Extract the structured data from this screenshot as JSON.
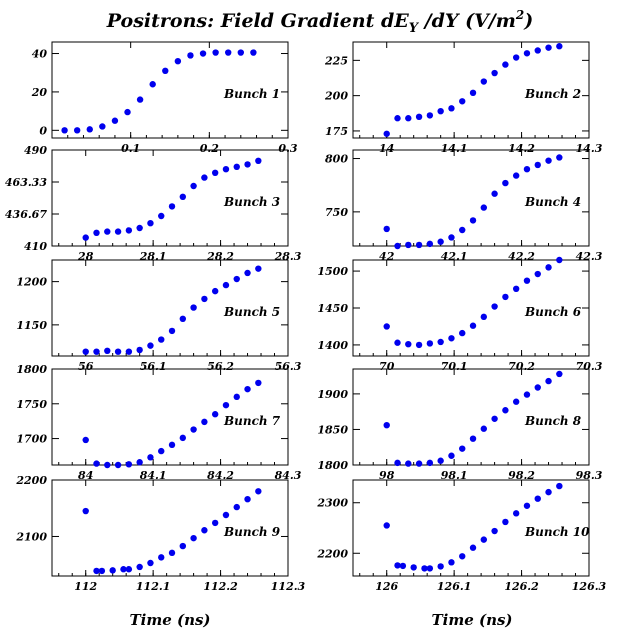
{
  "title": {
    "main": "Positrons: Field Gradient dE",
    "sub_y": "Y",
    "rest": " /dY (V/m",
    "sup_2": "2",
    "close": ")"
  },
  "xlabel_left": "Time (ns)",
  "xlabel_right": "Time (ns)",
  "colors": {
    "marker": "#0000ee",
    "axis": "#000000"
  },
  "chart_data": [
    {
      "type": "scatter",
      "panel_label": "Bunch 1",
      "xlim": [
        0,
        0.3
      ],
      "ylim": [
        -4,
        46
      ],
      "xticks": [
        "0.1",
        "0.2",
        "0.3"
      ],
      "xtick_values": [
        0.1,
        0.2,
        0.3
      ],
      "yticks": [
        "0",
        "20",
        "40"
      ],
      "ytick_values": [
        0,
        20,
        40
      ],
      "x": [
        0.016,
        0.032,
        0.048,
        0.064,
        0.08,
        0.096,
        0.112,
        0.128,
        0.144,
        0.16,
        0.176,
        0.192,
        0.208,
        0.224,
        0.24,
        0.256
      ],
      "y": [
        0,
        0,
        0.5,
        2,
        5,
        9.5,
        16,
        24,
        31,
        36,
        39,
        40,
        40.5,
        40.5,
        40.5,
        40.5
      ]
    },
    {
      "type": "scatter",
      "panel_label": "Bunch 2",
      "xlim": [
        13.95,
        14.3
      ],
      "ylim": [
        170,
        238
      ],
      "xticks": [
        "14",
        "14.1",
        "14.2",
        "14.3"
      ],
      "xtick_values": [
        14,
        14.1,
        14.2,
        14.3
      ],
      "yticks": [
        "175",
        "200",
        "225"
      ],
      "ytick_values": [
        175,
        200,
        225
      ],
      "x": [
        14,
        14.016,
        14.032,
        14.048,
        14.064,
        14.08,
        14.096,
        14.112,
        14.128,
        14.144,
        14.16,
        14.176,
        14.192,
        14.208,
        14.224,
        14.24,
        14.256
      ],
      "y": [
        173,
        184,
        184,
        185,
        186,
        189,
        191,
        196,
        202,
        210,
        216,
        222,
        227,
        230,
        232,
        234,
        235
      ]
    },
    {
      "type": "scatter",
      "panel_label": "Bunch 3",
      "xlim": [
        27.95,
        28.3
      ],
      "ylim": [
        410,
        490
      ],
      "xticks": [
        "28",
        "28.1",
        "28.2",
        "28.3"
      ],
      "xtick_values": [
        28,
        28.1,
        28.2,
        28.3
      ],
      "yticks": [
        "410",
        "436.67",
        "463.33",
        "490"
      ],
      "ytick_values": [
        410,
        436.67,
        463.33,
        490
      ],
      "x": [
        28,
        28.016,
        28.032,
        28.048,
        28.064,
        28.08,
        28.096,
        28.112,
        28.128,
        28.144,
        28.16,
        28.176,
        28.192,
        28.208,
        28.224,
        28.24,
        28.256
      ],
      "y": [
        417,
        421,
        422,
        422,
        423,
        425,
        429,
        435,
        443,
        451,
        460,
        467,
        471,
        474,
        476,
        478,
        481
      ]
    },
    {
      "type": "scatter",
      "panel_label": "Bunch 4",
      "xlim": [
        41.95,
        42.3
      ],
      "ylim": [
        718,
        808
      ],
      "xticks": [
        "42",
        "42.1",
        "42.2",
        "42.3"
      ],
      "xtick_values": [
        42,
        42.1,
        42.2,
        42.3
      ],
      "yticks": [
        "750",
        "800"
      ],
      "ytick_values": [
        750,
        800
      ],
      "x": [
        42,
        42.016,
        42.032,
        42.048,
        42.064,
        42.08,
        42.096,
        42.112,
        42.128,
        42.144,
        42.16,
        42.176,
        42.192,
        42.208,
        42.224,
        42.24,
        42.256
      ],
      "y": [
        734,
        718,
        719,
        719,
        720,
        722,
        726,
        733,
        742,
        754,
        767,
        777,
        784,
        790,
        794,
        798,
        801
      ]
    },
    {
      "type": "scatter",
      "panel_label": "Bunch 5",
      "xlim": [
        55.95,
        56.3
      ],
      "ylim": [
        1114,
        1225
      ],
      "xticks": [
        "56",
        "56.1",
        "56.2",
        "56.3"
      ],
      "xtick_values": [
        56,
        56.1,
        56.2,
        56.3
      ],
      "yticks": [
        "1150",
        "1200"
      ],
      "ytick_values": [
        1150,
        1200
      ],
      "x": [
        56,
        56.016,
        56.032,
        56.048,
        56.064,
        56.08,
        56.096,
        56.112,
        56.128,
        56.144,
        56.16,
        56.176,
        56.192,
        56.208,
        56.224,
        56.24,
        56.256
      ],
      "y": [
        1119,
        1119,
        1120,
        1119,
        1119,
        1121,
        1126,
        1133,
        1143,
        1157,
        1170,
        1180,
        1189,
        1196,
        1203,
        1210,
        1215
      ]
    },
    {
      "type": "scatter",
      "panel_label": "Bunch 6",
      "xlim": [
        69.95,
        70.3
      ],
      "ylim": [
        1385,
        1515
      ],
      "xticks": [
        "70",
        "70.1",
        "70.2",
        "70.3"
      ],
      "xtick_values": [
        70,
        70.1,
        70.2,
        70.3
      ],
      "yticks": [
        "1400",
        "1450",
        "1500"
      ],
      "ytick_values": [
        1400,
        1450,
        1500
      ],
      "x": [
        70,
        70.016,
        70.032,
        70.048,
        70.064,
        70.08,
        70.096,
        70.112,
        70.128,
        70.144,
        70.16,
        70.176,
        70.192,
        70.208,
        70.224,
        70.24,
        70.256
      ],
      "y": [
        1425,
        1403,
        1401,
        1400,
        1402,
        1404,
        1409,
        1416,
        1426,
        1438,
        1452,
        1465,
        1476,
        1487,
        1496,
        1505,
        1515
      ]
    },
    {
      "type": "scatter",
      "panel_label": "Bunch 7",
      "xlim": [
        83.95,
        84.3
      ],
      "ylim": [
        1662,
        1800
      ],
      "xticks": [
        "84",
        "84.1",
        "84.2",
        "84.3"
      ],
      "xtick_values": [
        84,
        84.1,
        84.2,
        84.3
      ],
      "yticks": [
        "1700",
        "1750",
        "1800"
      ],
      "ytick_values": [
        1700,
        1750,
        1800
      ],
      "x": [
        84,
        84.016,
        84.032,
        84.048,
        84.064,
        84.08,
        84.096,
        84.112,
        84.128,
        84.144,
        84.16,
        84.176,
        84.192,
        84.208,
        84.224,
        84.24,
        84.256
      ],
      "y": [
        1698,
        1664,
        1662,
        1662,
        1663,
        1666,
        1673,
        1682,
        1691,
        1701,
        1713,
        1724,
        1735,
        1748,
        1760,
        1771,
        1780
      ]
    },
    {
      "type": "scatter",
      "panel_label": "Bunch 8",
      "xlim": [
        97.95,
        98.3
      ],
      "ylim": [
        1800,
        1935
      ],
      "xticks": [
        "98",
        "98.1",
        "98.2",
        "98.3"
      ],
      "xtick_values": [
        98,
        98.1,
        98.2,
        98.3
      ],
      "yticks": [
        "1800",
        "1850",
        "1900"
      ],
      "ytick_values": [
        1800,
        1850,
        1900
      ],
      "x": [
        98,
        98.016,
        98.032,
        98.048,
        98.064,
        98.08,
        98.096,
        98.112,
        98.128,
        98.144,
        98.16,
        98.176,
        98.192,
        98.208,
        98.224,
        98.24,
        98.256
      ],
      "y": [
        1856,
        1803,
        1802,
        1802,
        1803,
        1806,
        1813,
        1823,
        1837,
        1851,
        1865,
        1877,
        1889,
        1899,
        1909,
        1918,
        1928
      ]
    },
    {
      "type": "scatter",
      "panel_label": "Bunch 9",
      "xlim": [
        111.95,
        112.3
      ],
      "ylim": [
        2030,
        2200
      ],
      "xticks": [
        "112",
        "112.1",
        "112.2",
        "112.3"
      ],
      "xtick_values": [
        112,
        112.1,
        112.2,
        112.3
      ],
      "yticks": [
        "2100",
        "2200"
      ],
      "ytick_values": [
        2100,
        2200
      ],
      "x": [
        112,
        112.016,
        112.024,
        112.04,
        112.056,
        112.064,
        112.08,
        112.096,
        112.112,
        112.128,
        112.144,
        112.16,
        112.176,
        112.192,
        112.208,
        112.224,
        112.24,
        112.256
      ],
      "y": [
        2145,
        2039,
        2039,
        2040,
        2042,
        2042,
        2046,
        2053,
        2063,
        2071,
        2083,
        2097,
        2111,
        2124,
        2138,
        2152,
        2166,
        2180
      ]
    },
    {
      "type": "scatter",
      "panel_label": "Bunch 10",
      "xlim": [
        125.95,
        126.3
      ],
      "ylim": [
        2155,
        2345
      ],
      "xticks": [
        "126",
        "126.1",
        "126.2",
        "126.3"
      ],
      "xtick_values": [
        126,
        126.1,
        126.2,
        126.3
      ],
      "yticks": [
        "2200",
        "2300"
      ],
      "ytick_values": [
        2200,
        2300
      ],
      "x": [
        126,
        126.016,
        126.024,
        126.04,
        126.056,
        126.064,
        126.08,
        126.096,
        126.112,
        126.128,
        126.144,
        126.16,
        126.176,
        126.192,
        126.208,
        126.224,
        126.24,
        126.256
      ],
      "y": [
        2255,
        2176,
        2175,
        2172,
        2170,
        2170,
        2174,
        2182,
        2194,
        2211,
        2227,
        2244,
        2262,
        2279,
        2294,
        2308,
        2321,
        2333
      ]
    }
  ]
}
